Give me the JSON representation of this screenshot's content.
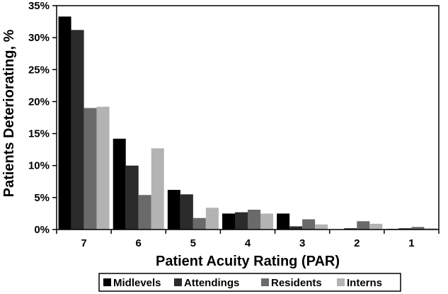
{
  "chart_data": {
    "type": "bar",
    "title": "",
    "xlabel": "Patient Acuity Rating (PAR)",
    "ylabel": "Patients Deteriorating, %",
    "categories": [
      "7",
      "6",
      "5",
      "4",
      "3",
      "2",
      "1"
    ],
    "ylim": [
      0,
      35
    ],
    "yticks": [
      0,
      5,
      10,
      15,
      20,
      25,
      30,
      35
    ],
    "ytick_labels": [
      "0%",
      "5%",
      "10%",
      "15%",
      "20%",
      "25%",
      "30%",
      "35%"
    ],
    "grid": false,
    "legend_position": "bottom",
    "series": [
      {
        "name": "Midlevels",
        "color": "#000000",
        "values": [
          33.3,
          14.2,
          6.2,
          2.5,
          2.5,
          0.0,
          0.1
        ]
      },
      {
        "name": "Attendings",
        "color": "#2b2b2b",
        "values": [
          31.2,
          10.0,
          5.5,
          2.7,
          0.5,
          0.2,
          0.2
        ]
      },
      {
        "name": "Residents",
        "color": "#6a6a6a",
        "values": [
          19.0,
          5.4,
          1.8,
          3.1,
          1.6,
          1.3,
          0.4
        ]
      },
      {
        "name": "Interns",
        "color": "#b3b3b3",
        "values": [
          19.2,
          12.7,
          3.4,
          2.5,
          0.8,
          0.9,
          0.2
        ]
      }
    ]
  }
}
